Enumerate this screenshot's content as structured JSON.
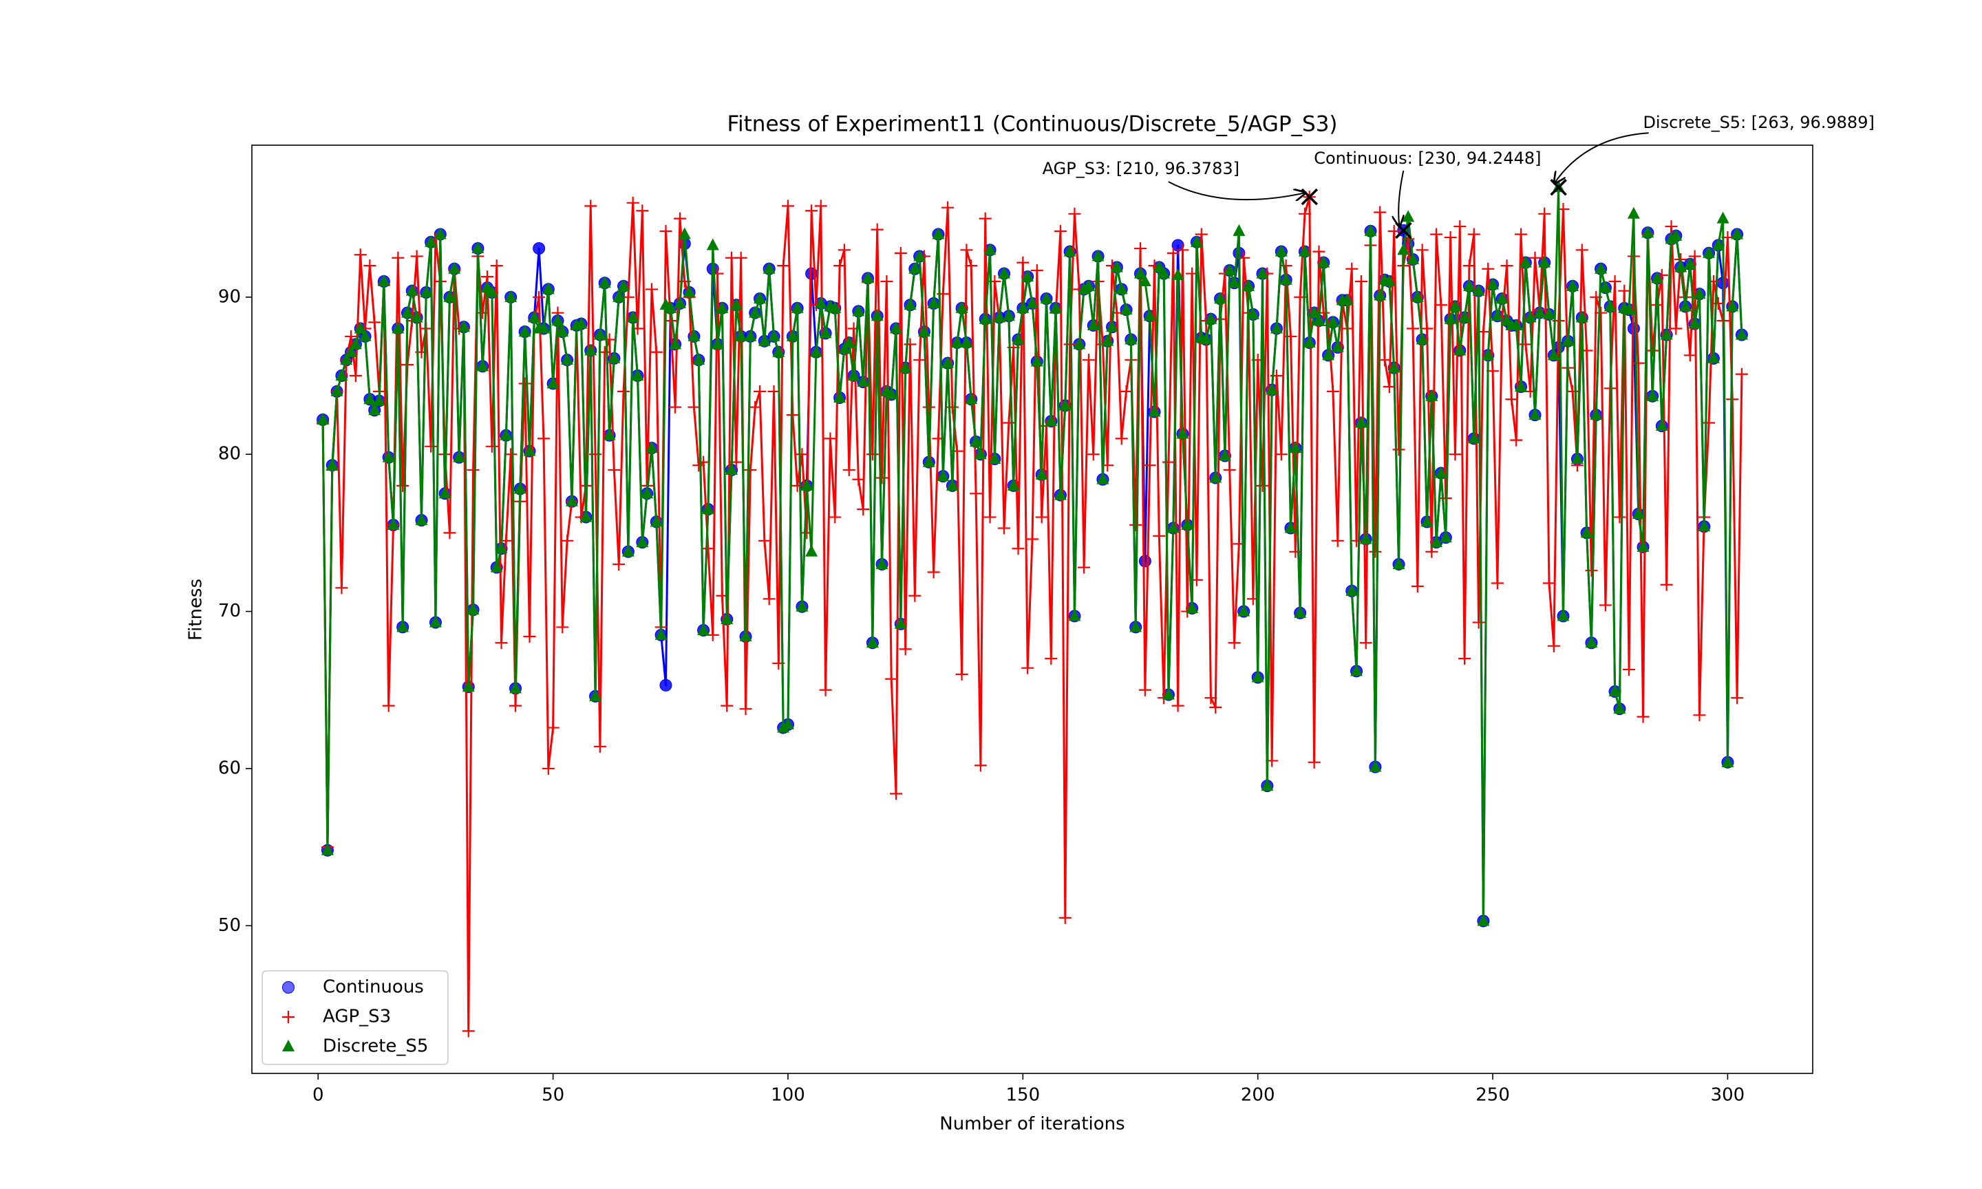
{
  "chart_data": {
    "type": "line",
    "title": "Fitness of Experiment11 (Continuous/Discrete_5/AGP_S3)",
    "x_label": "Number of iterations",
    "y_label": "Fitness",
    "xlim": [
      -14.1,
      318.1
    ],
    "ylim": [
      40.6,
      99.67
    ],
    "xticks": [
      0,
      50,
      100,
      150,
      200,
      250,
      300
    ],
    "yticks": [
      50,
      60,
      70,
      80,
      90
    ],
    "legend": "lower left",
    "x": [
      1,
      2,
      3,
      4,
      5,
      6,
      7,
      8,
      9,
      10,
      11,
      12,
      13,
      14,
      15,
      16,
      17,
      18,
      19,
      20,
      21,
      22,
      23,
      24,
      25,
      26,
      27,
      28,
      29,
      30,
      31,
      32,
      33,
      34,
      35,
      36,
      37,
      38,
      39,
      40,
      41,
      42,
      43,
      44,
      45,
      46,
      47,
      48,
      49,
      50,
      51,
      52,
      53,
      54,
      55,
      56,
      57,
      58,
      59,
      60,
      61,
      62,
      63,
      64,
      65,
      66,
      67,
      68,
      69,
      70,
      71,
      72,
      73,
      74,
      75,
      76,
      77,
      78,
      79,
      80,
      81,
      82,
      83,
      84,
      85,
      86,
      87,
      88,
      89,
      90,
      91,
      92,
      93,
      94,
      95,
      96,
      97,
      98,
      99,
      100,
      101,
      102,
      103,
      104,
      105,
      106,
      107,
      108,
      109,
      110,
      111,
      112,
      113,
      114,
      115,
      116,
      117,
      118,
      119,
      120,
      121,
      122,
      123,
      124,
      125,
      126,
      127,
      128,
      129,
      130,
      131,
      132,
      133,
      134,
      135,
      136,
      137,
      138,
      139,
      140,
      141,
      142,
      143,
      144,
      145,
      146,
      147,
      148,
      149,
      150,
      151,
      152,
      153,
      154,
      155,
      156,
      157,
      158,
      159,
      160,
      161,
      162,
      163,
      164,
      165,
      166,
      167,
      168,
      169,
      170,
      171,
      172,
      173,
      174,
      175,
      176,
      177,
      178,
      179,
      180,
      181,
      182,
      183,
      184,
      185,
      186,
      187,
      188,
      189,
      190,
      191,
      192,
      193,
      194,
      195,
      196,
      197,
      198,
      199,
      200,
      201,
      202,
      203,
      204,
      205,
      206,
      207,
      208,
      209,
      210,
      211,
      212,
      213,
      214,
      215,
      216,
      217,
      218,
      219,
      220,
      221,
      222,
      223,
      224,
      225,
      226,
      227,
      228,
      229,
      230,
      231,
      232,
      233,
      234,
      235,
      236,
      237,
      238,
      239,
      240,
      241,
      242,
      243,
      244,
      245,
      246,
      247,
      248,
      249,
      250,
      251,
      252,
      253,
      254,
      255,
      256,
      257,
      258,
      259,
      260,
      261,
      262,
      263,
      264,
      265,
      266,
      267,
      268,
      269,
      270,
      271,
      272,
      273,
      274,
      275,
      276,
      277,
      278,
      279,
      280,
      281,
      282,
      283,
      284,
      285,
      286,
      287,
      288,
      289,
      290,
      291,
      292,
      293,
      294,
      295,
      296,
      297,
      298,
      299,
      300,
      301,
      302,
      303
    ],
    "series": [
      {
        "name": "Continuous",
        "color": "#0000ff",
        "marker": "o",
        "values": [
          82.2,
          54.8,
          79.3,
          84,
          85,
          86,
          86.5,
          87,
          88,
          87.5,
          83.5,
          82.8,
          83.4,
          91,
          79.8,
          75.5,
          88,
          69,
          89,
          90.4,
          88.7,
          75.8,
          90.3,
          93.5,
          69.3,
          94,
          77.5,
          90,
          91.8,
          79.8,
          88.1,
          65.2,
          70.1,
          93.1,
          85.6,
          90.6,
          90.3,
          72.8,
          74,
          81.2,
          90,
          65.1,
          77.8,
          87.8,
          80.2,
          88.7,
          93.1,
          88,
          90.5,
          84.5,
          88.5,
          87.8,
          86,
          77,
          88.2,
          88.3,
          76,
          86.6,
          64.6,
          87.6,
          90.9,
          81.2,
          86.1,
          90,
          90.7,
          73.8,
          88.7,
          85,
          74.4,
          77.5,
          80.4,
          75.7,
          68.5,
          65.3,
          89.3,
          87,
          89.6,
          93.4,
          90.3,
          87.5,
          86,
          68.8,
          76.5,
          91.8,
          87,
          89.3,
          69.5,
          79,
          89.5,
          87.5,
          68.4,
          87.5,
          89,
          89.9,
          87.2,
          91.8,
          87.5,
          86.5,
          62.6,
          62.8,
          87.5,
          89.3,
          70.3,
          78,
          91.5,
          86.5,
          89.6,
          87.7,
          89.4,
          89.3,
          83.6,
          86.7,
          87.1,
          85,
          89.1,
          84.6,
          91.2,
          68,
          88.8,
          73,
          84,
          83.8,
          88,
          69.2,
          85.5,
          89.5,
          91.8,
          92.6,
          87.8,
          79.5,
          89.6,
          94,
          78.6,
          85.8,
          78,
          87.1,
          89.3,
          87.1,
          83.5,
          80.8,
          80,
          88.6,
          93,
          79.7,
          88.7,
          91.5,
          88.8,
          78,
          87.3,
          89.3,
          91.3,
          89.6,
          85.9,
          78.7,
          89.9,
          82.1,
          89.3,
          77.4,
          83.1,
          92.9,
          69.7,
          87,
          90.5,
          90.7,
          88.2,
          92.6,
          78.4,
          87.2,
          88.1,
          91.9,
          90.5,
          89.2,
          87.3,
          69,
          91.5,
          73.2,
          88.8,
          82.7,
          91.9,
          91.5,
          64.7,
          75.3,
          93.3,
          81.3,
          75.5,
          70.2,
          93.5,
          87.4,
          87.3,
          88.6,
          78.5,
          89.9,
          79.9,
          91.7,
          90.9,
          92.8,
          70,
          90.7,
          88.9,
          65.8,
          91.5,
          58.9,
          84.1,
          88,
          92.9,
          91.1,
          75.3,
          80.4,
          69.9,
          92.9,
          87.1,
          89,
          88.5,
          92.2,
          86.3,
          88.4,
          86.8,
          89.8,
          89.8,
          71.3,
          66.2,
          82,
          74.6,
          94.2,
          60.1,
          90.1,
          91.1,
          91,
          85.5,
          73,
          94.2448,
          93.4,
          92.4,
          90,
          87.3,
          75.7,
          83.7,
          74.4,
          78.8,
          74.7,
          88.6,
          89.4,
          86.6,
          88.7,
          90.7,
          81,
          90.4,
          50.3,
          86.3,
          90.8,
          88.8,
          89.9,
          88.5,
          88.2,
          88.2,
          84.3,
          92.2,
          88.7,
          82.5,
          89,
          92.2,
          88.9,
          86.3,
          86.8,
          69.7,
          87.2,
          90.7,
          79.7,
          88.7,
          75,
          68,
          82.5,
          91.8,
          90.6,
          89.4,
          64.9,
          63.8,
          89.3,
          89.2,
          88,
          76.2,
          74.1,
          94.1,
          83.7,
          91.2,
          81.8,
          87.6,
          93.7,
          93.9,
          91.9,
          89.4,
          92.1,
          88.3,
          90.2,
          75.4,
          92.8,
          86.1,
          93.3,
          90.9,
          60.4,
          89.4,
          94,
          87.6
        ]
      },
      {
        "name": "AGP_S3",
        "color": "#ff0000",
        "marker": "+",
        "values": [
          82,
          55,
          79,
          84,
          71.5,
          86,
          87.5,
          85,
          92.7,
          88,
          92,
          88.4,
          84,
          90.8,
          64,
          75.5,
          92.5,
          78,
          85.7,
          88.5,
          92.6,
          86.5,
          88,
          80.5,
          93.7,
          91,
          80,
          75,
          91.7,
          88,
          88,
          43.3,
          79,
          92.6,
          89,
          91.3,
          80.5,
          92,
          68,
          74.5,
          80,
          64,
          77,
          84.5,
          68.4,
          88.5,
          90,
          81,
          60,
          62.6,
          89,
          69,
          74.5,
          77,
          88,
          76,
          78,
          95.8,
          80,
          61.4,
          86.5,
          87.3,
          79,
          73,
          84,
          90,
          96,
          88,
          95.5,
          78,
          90.5,
          86.5,
          69,
          94.2,
          88.5,
          83,
          95,
          91,
          90,
          83,
          79.3,
          79.5,
          74,
          68.5,
          91.5,
          71,
          64,
          92.5,
          79.5,
          92.5,
          63.8,
          79,
          83,
          84,
          74.5,
          70.8,
          84,
          66.7,
          92,
          95.8,
          82.5,
          78,
          80,
          75,
          95.5,
          89.5,
          95.8,
          65,
          81,
          76,
          92,
          93,
          79,
          88,
          78.4,
          76.5,
          91,
          80,
          94.3,
          78.5,
          91,
          65.7,
          58.4,
          92.8,
          67.6,
          87,
          71,
          86,
          92.6,
          83,
          72.5,
          81,
          90.2,
          95.7,
          83,
          80.2,
          66,
          93,
          92,
          77.5,
          60.2,
          95,
          76,
          91,
          88.5,
          75.3,
          82,
          86.8,
          74,
          92.2,
          66.4,
          74.6,
          91.7,
          76,
          81.8,
          67,
          89,
          94.2,
          50.5,
          87,
          95.3,
          90.5,
          72.8,
          86,
          80,
          91,
          87,
          79.3,
          92,
          89,
          81,
          84,
          86,
          75.5,
          93.1,
          65,
          79.3,
          92,
          74.8,
          64.5,
          79.5,
          92.8,
          64,
          93,
          70,
          91.5,
          72,
          94,
          88.5,
          64.5,
          63.9,
          88.6,
          91.5,
          79,
          68,
          74.3,
          92.5,
          89,
          70.8,
          86,
          78,
          91.5,
          60.5,
          85,
          80,
          92,
          87.5,
          73.8,
          90,
          95.3,
          96.3783,
          60.4,
          92.9,
          89,
          88.2,
          84,
          74.5,
          89.7,
          88,
          91.8,
          74.5,
          91,
          68,
          93.3,
          73.8,
          95.4,
          86,
          84.3,
          94.2,
          80.3,
          92,
          93.7,
          88,
          71.6,
          93,
          88,
          73.8,
          94,
          89.5,
          77.2,
          93.8,
          80,
          94.5,
          67,
          92,
          94,
          69.3,
          87.8,
          91.8,
          85.3,
          71.8,
          88.7,
          92,
          83.5,
          80.9,
          94,
          87,
          84,
          92.5,
          89.2,
          95.3,
          71.8,
          67.8,
          88.5,
          95.6,
          85.5,
          84,
          79.3,
          93,
          86.6,
          72.6,
          90,
          89,
          70.4,
          84.2,
          91,
          76,
          90.4,
          66.3,
          92.6,
          85.8,
          63.3,
          94,
          86.6,
          89.5,
          91.4,
          71.7,
          94.5,
          88,
          92.4,
          90,
          86.3,
          92.6,
          63.4,
          76,
          82,
          91,
          89.6,
          88.5,
          93.8,
          83.5,
          64.5,
          85.1
        ]
      },
      {
        "name": "Discrete_S5",
        "color": "#008000",
        "marker": "^",
        "values": [
          82.2,
          54.8,
          79.3,
          84,
          85,
          86,
          86.5,
          87,
          88,
          87.5,
          83.5,
          82.8,
          83.4,
          91,
          79.8,
          75.5,
          88,
          69,
          89,
          90.4,
          88.7,
          75.8,
          90.3,
          93.5,
          69.3,
          94,
          77.5,
          90,
          91.8,
          79.8,
          88.1,
          65.2,
          70.1,
          93.1,
          85.6,
          90.6,
          90.3,
          72.8,
          74,
          81.2,
          90,
          65.1,
          77.8,
          87.8,
          80.2,
          88.7,
          88,
          88,
          90.5,
          84.5,
          88.5,
          87.8,
          86,
          77,
          88.2,
          88.3,
          76,
          86.6,
          64.6,
          87.6,
          90.9,
          81.2,
          86.1,
          90,
          90.7,
          73.8,
          88.7,
          85,
          74.4,
          77.5,
          80.4,
          75.7,
          68.5,
          89.5,
          89.3,
          87,
          89.6,
          94,
          90.3,
          87.5,
          86,
          68.8,
          76.5,
          93.3,
          87,
          89.3,
          69.5,
          79,
          89.5,
          87.5,
          68.4,
          87.5,
          89,
          89.9,
          87.2,
          91.8,
          87.5,
          86.5,
          62.6,
          62.8,
          87.5,
          89.3,
          70.3,
          78,
          73.8,
          86.5,
          89.6,
          87.7,
          89.4,
          89.3,
          83.6,
          86.7,
          87.1,
          85,
          89.1,
          84.6,
          91.2,
          68,
          88.8,
          73,
          84,
          83.8,
          88,
          69.2,
          85.5,
          89.5,
          91.8,
          92.6,
          87.8,
          79.5,
          89.6,
          94,
          78.6,
          85.8,
          78,
          87.1,
          89.3,
          87.1,
          83.5,
          80.8,
          80,
          88.6,
          93,
          79.7,
          88.7,
          91.5,
          88.8,
          78,
          87.3,
          89.3,
          91.3,
          89.6,
          85.9,
          78.7,
          89.9,
          82.1,
          89.3,
          77.4,
          83.1,
          92.9,
          69.7,
          87,
          90.5,
          90.7,
          88.2,
          92.6,
          78.4,
          87.2,
          88.1,
          91.9,
          90.5,
          89.2,
          87.3,
          69,
          91.5,
          91,
          88.8,
          82.7,
          91.9,
          91.5,
          64.7,
          75.3,
          91.4,
          81.3,
          75.5,
          70.2,
          93.5,
          87.4,
          87.3,
          88.6,
          78.5,
          89.9,
          79.9,
          91.7,
          90.9,
          94.2,
          70,
          90.7,
          88.9,
          65.8,
          91.5,
          58.9,
          84.1,
          88,
          92.9,
          91.1,
          75.3,
          80.4,
          69.9,
          92.9,
          87.1,
          89,
          88.5,
          92.2,
          86.3,
          88.4,
          86.8,
          89.8,
          89.8,
          71.3,
          66.2,
          82,
          74.6,
          94.2,
          60.1,
          90.1,
          91.1,
          91,
          85.5,
          73,
          93,
          95.1,
          92.4,
          90,
          87.3,
          75.7,
          83.7,
          74.4,
          78.8,
          74.7,
          88.6,
          89.4,
          86.6,
          88.7,
          90.7,
          81,
          90.4,
          50.3,
          86.3,
          90.8,
          88.8,
          89.9,
          88.5,
          88.2,
          88.2,
          84.3,
          92.2,
          88.7,
          82.5,
          89,
          92.2,
          88.9,
          86.3,
          96.9889,
          69.7,
          87.2,
          90.7,
          79.7,
          88.7,
          75,
          68,
          82.5,
          91.8,
          90.6,
          89.4,
          64.9,
          63.8,
          89.3,
          89.2,
          95.3,
          76.2,
          74.1,
          94.1,
          83.7,
          91.2,
          81.8,
          87.6,
          93.7,
          93.9,
          91.9,
          89.4,
          92.1,
          88.3,
          90.2,
          75.4,
          92.8,
          86.1,
          93.3,
          95,
          60.4,
          89.4,
          94,
          87.6
        ]
      }
    ],
    "annotations": [
      {
        "text": "AGP_S3: [210, 96.3783]",
        "x": 211,
        "y": 96.3783
      },
      {
        "text": "Continuous: [230, 94.2448]",
        "x": 231,
        "y": 94.2448
      },
      {
        "text": "Discrete_S5: [263, 96.9889]",
        "x": 264,
        "y": 96.9889
      }
    ]
  }
}
